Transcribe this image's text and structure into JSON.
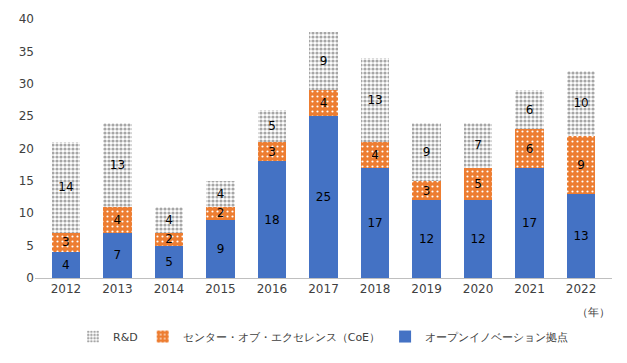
{
  "chart_data": {
    "type": "bar",
    "stacked": true,
    "data_labels": true,
    "grid": false,
    "legend": "bottom",
    "xlabel": "（年）",
    "categories": [
      "2012",
      "2013",
      "2014",
      "2015",
      "2016",
      "2017",
      "2018",
      "2019",
      "2020",
      "2021",
      "2022"
    ],
    "series": [
      {
        "name": "オープンイノベーション拠点",
        "color": "#4472c4",
        "values": [
          4,
          7,
          5,
          9,
          18,
          25,
          17,
          12,
          12,
          17,
          13
        ]
      },
      {
        "name": "センター・オブ・エクセレンス（CoE）",
        "color": "#ed7d31",
        "values": [
          3,
          4,
          2,
          2,
          3,
          4,
          4,
          3,
          5,
          6,
          9
        ]
      },
      {
        "name": "R&D",
        "color": "#a6a6a6",
        "values": [
          14,
          13,
          4,
          4,
          5,
          9,
          13,
          9,
          7,
          6,
          10
        ]
      }
    ],
    "ylim": [
      0,
      40
    ],
    "yticks": [
      0,
      5,
      10,
      15,
      20,
      25,
      30,
      35,
      40
    ]
  }
}
